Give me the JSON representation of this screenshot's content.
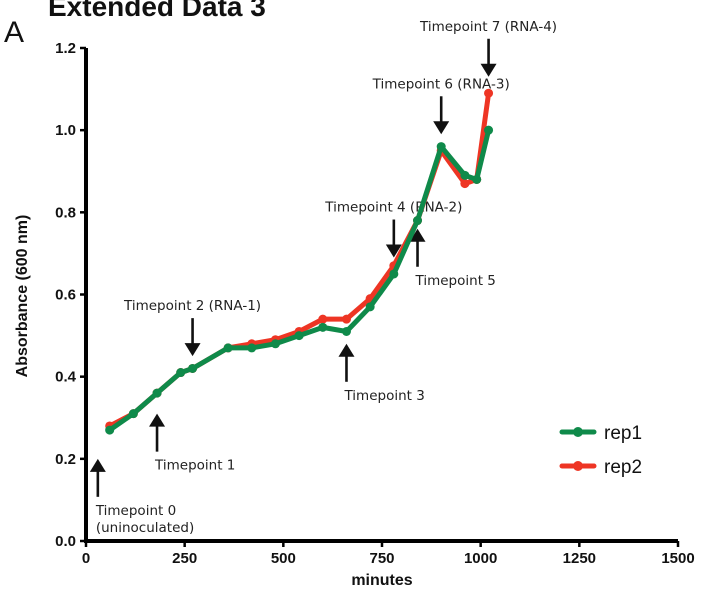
{
  "figure": {
    "title": "Extended Data 3",
    "panel": "A"
  },
  "chart_data": {
    "type": "line",
    "xlabel": "minutes",
    "ylabel": "Absorbance (600 nm)",
    "xlim": [
      0,
      1500
    ],
    "ylim": [
      0,
      1.2
    ],
    "xticks": [
      "0",
      "250",
      "500",
      "750",
      "1000",
      "1250",
      "1500"
    ],
    "yticks": [
      "0.0",
      "0.2",
      "0.4",
      "0.6",
      "0.8",
      "1.0",
      "1.2"
    ],
    "grid": false,
    "legend_position": "bottom-right",
    "series": [
      {
        "name": "rep2",
        "color": "#ee3524",
        "x": [
          60,
          120,
          180,
          240,
          270,
          360,
          420,
          480,
          540,
          600,
          660,
          720,
          780,
          840,
          900,
          960,
          990,
          1020
        ],
        "y": [
          0.28,
          0.31,
          0.36,
          0.41,
          0.42,
          0.47,
          0.48,
          0.49,
          0.51,
          0.54,
          0.54,
          0.59,
          0.67,
          0.78,
          0.95,
          0.87,
          0.88,
          1.09
        ]
      },
      {
        "name": "rep1",
        "color": "#0f8a4a",
        "x": [
          60,
          120,
          180,
          240,
          270,
          360,
          420,
          480,
          540,
          600,
          660,
          720,
          780,
          840,
          900,
          960,
          990,
          1020
        ],
        "y": [
          0.27,
          0.31,
          0.36,
          0.41,
          0.42,
          0.47,
          0.47,
          0.48,
          0.5,
          0.52,
          0.51,
          0.57,
          0.65,
          0.78,
          0.96,
          0.89,
          0.88,
          1.0
        ]
      }
    ],
    "annotations": [
      {
        "lines": [
          "Timepoint 0",
          "(uninoculated)"
        ],
        "x": 30,
        "y": 0.2,
        "arrow": "up"
      },
      {
        "lines": [
          "Timepoint 1"
        ],
        "x": 180,
        "y": 0.31,
        "arrow": "up"
      },
      {
        "lines": [
          "Timepoint 2 (RNA-1)"
        ],
        "x": 270,
        "y": 0.45,
        "arrow": "down"
      },
      {
        "lines": [
          "Timepoint 3"
        ],
        "x": 660,
        "y": 0.48,
        "arrow": "up"
      },
      {
        "lines": [
          "Timepoint 4 (RNA-2)"
        ],
        "x": 780,
        "y": 0.69,
        "arrow": "down"
      },
      {
        "lines": [
          "Timepoint 5"
        ],
        "x": 840,
        "y": 0.76,
        "arrow": "up"
      },
      {
        "lines": [
          "Timepoint 6 (RNA-3)"
        ],
        "x": 900,
        "y": 0.99,
        "arrow": "down"
      },
      {
        "lines": [
          "Timepoint 7 (RNA-4)"
        ],
        "x": 1020,
        "y": 1.13,
        "arrow": "down"
      }
    ]
  }
}
